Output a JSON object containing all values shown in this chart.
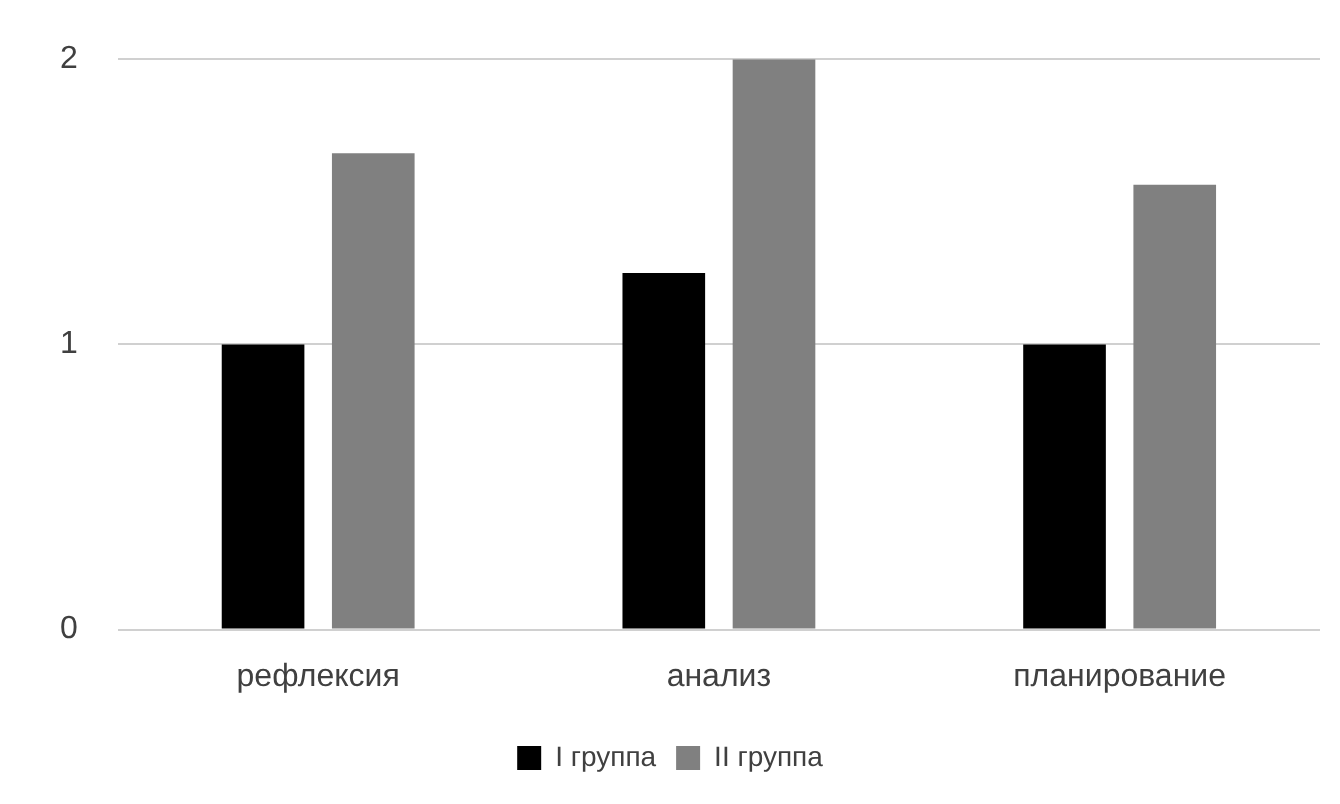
{
  "chart_data": {
    "type": "bar",
    "categories": [
      "рефлексия",
      "анализ",
      "планирование"
    ],
    "series": [
      {
        "name": "I группа",
        "color": "#000000",
        "values": [
          1,
          1.25,
          1
        ]
      },
      {
        "name": "II группа",
        "color": "#808080",
        "values": [
          1.67,
          2,
          1.56
        ]
      }
    ],
    "ylim": [
      0,
      2
    ],
    "yticks": [
      0,
      1,
      2
    ],
    "grid": "y",
    "legend": "bottom"
  }
}
